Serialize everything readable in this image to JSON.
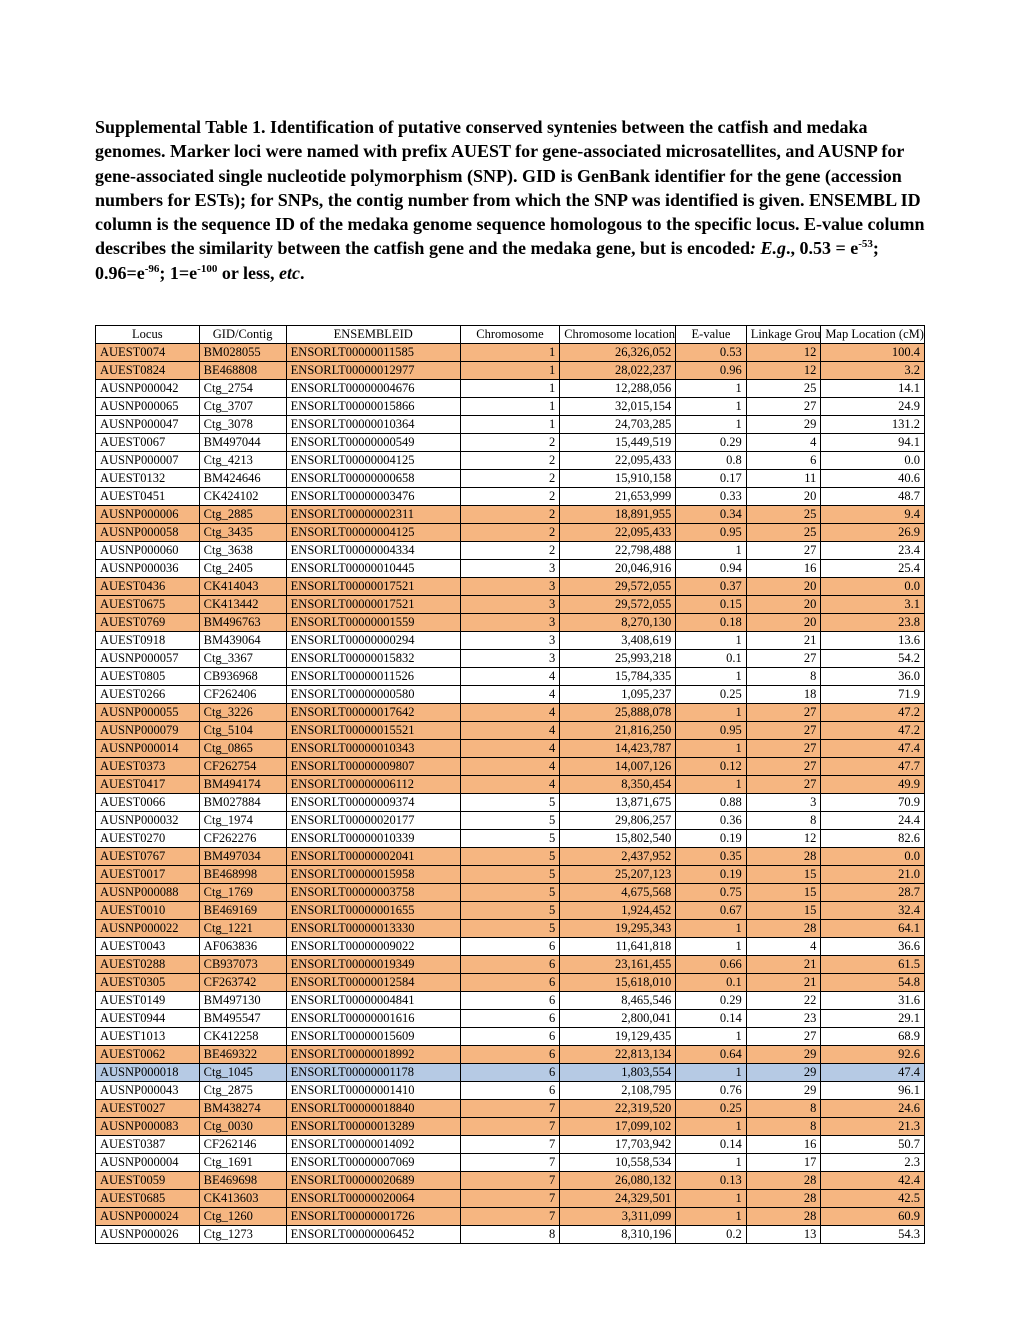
{
  "title_parts": {
    "p1": "Supplemental Table 1. Identification of putative conserved syntenies between the catfish and medaka genomes.  Marker loci were named with prefix AUEST for gene-associated microsatellites, and AUSNP for gene-associated single nucleotide polymorphism (SNP). GID is GenBank identifier for the gene (accession numbers for ESTs); for SNPs, the contig number from which the SNP was identified is given.  ENSEMBL ID column is the sequence ID of the medaka genome sequence homologous to the specific locus.  E-value column describes the similarity between the catfish gene and the medaka gene, but is encoded",
    "p2": ": E.g",
    "p3": "., 0.53 = e",
    "p4": "-53",
    "p5": "; 0.96=e",
    "p6": "-96",
    "p7": "; 1=e",
    "p8": "-100",
    "p9": " or less, ",
    "p10": "etc",
    "p11": "."
  },
  "colors": {
    "orange": "#f6b681",
    "blue": "#b6cae4",
    "white": "#ffffff"
  },
  "columns": [
    "Locus",
    "GID/Contig",
    "ENSEMBLEID",
    "Chromosome",
    "Chromosome location (bp)",
    "E-value",
    "Linkage Group",
    "Map Location (cM)"
  ],
  "rows": [
    {
      "hl": "orange",
      "c": [
        "AUEST0074",
        "BM028055",
        "ENSORLT00000011585",
        "1",
        "26,326,052",
        "0.53",
        "12",
        "100.4"
      ]
    },
    {
      "hl": "orange",
      "c": [
        "AUEST0824",
        "BE468808",
        "ENSORLT00000012977",
        "1",
        "28,022,237",
        "0.96",
        "12",
        "3.2"
      ]
    },
    {
      "hl": "white",
      "c": [
        "AUSNP000042",
        "Ctg_2754",
        "ENSORLT00000004676",
        "1",
        "12,288,056",
        "1",
        "25",
        "14.1"
      ]
    },
    {
      "hl": "white",
      "c": [
        "AUSNP000065",
        "Ctg_3707",
        "ENSORLT00000015866",
        "1",
        "32,015,154",
        "1",
        "27",
        "24.9"
      ]
    },
    {
      "hl": "white",
      "c": [
        "AUSNP000047",
        "Ctg_3078",
        "ENSORLT00000010364",
        "1",
        "24,703,285",
        "1",
        "29",
        "131.2"
      ]
    },
    {
      "hl": "white",
      "c": [
        "AUEST0067",
        "BM497044",
        "ENSORLT00000000549",
        "2",
        "15,449,519",
        "0.29",
        "4",
        "94.1"
      ]
    },
    {
      "hl": "white",
      "c": [
        "AUSNP000007",
        "Ctg_4213",
        "ENSORLT00000004125",
        "2",
        "22,095,433",
        "0.8",
        "6",
        "0.0"
      ]
    },
    {
      "hl": "white",
      "c": [
        "AUEST0132",
        "BM424646",
        "ENSORLT00000000658",
        "2",
        "15,910,158",
        "0.17",
        "11",
        "40.6"
      ]
    },
    {
      "hl": "white",
      "c": [
        "AUEST0451",
        "CK424102",
        "ENSORLT00000003476",
        "2",
        "21,653,999",
        "0.33",
        "20",
        "48.7"
      ]
    },
    {
      "hl": "orange",
      "c": [
        "AUSNP000006",
        "Ctg_2885",
        "ENSORLT00000002311",
        "2",
        "18,891,955",
        "0.34",
        "25",
        "9.4"
      ]
    },
    {
      "hl": "orange",
      "c": [
        "AUSNP000058",
        "Ctg_3435",
        "ENSORLT00000004125",
        "2",
        "22,095,433",
        "0.95",
        "25",
        "26.9"
      ]
    },
    {
      "hl": "white",
      "c": [
        "AUSNP000060",
        "Ctg_3638",
        "ENSORLT00000004334",
        "2",
        "22,798,488",
        "1",
        "27",
        "23.4"
      ]
    },
    {
      "hl": "white",
      "c": [
        "AUSNP000036",
        "Ctg_2405",
        "ENSORLT00000010445",
        "3",
        "20,046,916",
        "0.94",
        "16",
        "25.4"
      ]
    },
    {
      "hl": "orange",
      "c": [
        "AUEST0436",
        "CK414043",
        "ENSORLT00000017521",
        "3",
        "29,572,055",
        "0.37",
        "20",
        "0.0"
      ]
    },
    {
      "hl": "orange",
      "c": [
        "AUEST0675",
        "CK413442",
        "ENSORLT00000017521",
        "3",
        "29,572,055",
        "0.15",
        "20",
        "3.1"
      ]
    },
    {
      "hl": "orange",
      "c": [
        "AUEST0769",
        "BM496763",
        "ENSORLT00000001559",
        "3",
        "8,270,130",
        "0.18",
        "20",
        "23.8"
      ]
    },
    {
      "hl": "white",
      "c": [
        "AUEST0918",
        "BM439064",
        "ENSORLT00000000294",
        "3",
        "3,408,619",
        "1",
        "21",
        "13.6"
      ]
    },
    {
      "hl": "white",
      "c": [
        "AUSNP000057",
        "Ctg_3367",
        "ENSORLT00000015832",
        "3",
        "25,993,218",
        "0.1",
        "27",
        "54.2"
      ]
    },
    {
      "hl": "white",
      "c": [
        "AUEST0805",
        "CB936968",
        "ENSORLT00000011526",
        "4",
        "15,784,335",
        "1",
        "8",
        "36.0"
      ]
    },
    {
      "hl": "white",
      "c": [
        "AUEST0266",
        "CF262406",
        "ENSORLT00000000580",
        "4",
        "1,095,237",
        "0.25",
        "18",
        "71.9"
      ]
    },
    {
      "hl": "orange",
      "c": [
        "AUSNP000055",
        "Ctg_3226",
        "ENSORLT00000017642",
        "4",
        "25,888,078",
        "1",
        "27",
        "47.2"
      ]
    },
    {
      "hl": "orange",
      "c": [
        "AUSNP000079",
        "Ctg_5104",
        "ENSORLT00000015521",
        "4",
        "21,816,250",
        "0.95",
        "27",
        "47.2"
      ]
    },
    {
      "hl": "orange",
      "c": [
        "AUSNP000014",
        "Ctg_0865",
        "ENSORLT00000010343",
        "4",
        "14,423,787",
        "1",
        "27",
        "47.4"
      ]
    },
    {
      "hl": "orange",
      "c": [
        "AUEST0373",
        "CF262754",
        "ENSORLT00000009807",
        "4",
        "14,007,126",
        "0.12",
        "27",
        "47.7"
      ]
    },
    {
      "hl": "orange",
      "c": [
        "AUEST0417",
        "BM494174",
        "ENSORLT00000006112",
        "4",
        "8,350,454",
        "1",
        "27",
        "49.9"
      ]
    },
    {
      "hl": "white",
      "c": [
        "AUEST0066",
        "BM027884",
        "ENSORLT00000009374",
        "5",
        "13,871,675",
        "0.88",
        "3",
        "70.9"
      ]
    },
    {
      "hl": "white",
      "c": [
        "AUSNP000032",
        "Ctg_1974",
        "ENSORLT00000020177",
        "5",
        "29,806,257",
        "0.36",
        "8",
        "24.4"
      ]
    },
    {
      "hl": "white",
      "c": [
        "AUEST0270",
        "CF262276",
        "ENSORLT00000010339",
        "5",
        "15,802,540",
        "0.19",
        "12",
        "82.6"
      ]
    },
    {
      "hl": "orange",
      "c": [
        "AUEST0767",
        "BM497034",
        "ENSORLT00000002041",
        "5",
        "2,437,952",
        "0.35",
        "28",
        "0.0"
      ]
    },
    {
      "hl": "orange",
      "c": [
        "AUEST0017",
        "BE468998",
        "ENSORLT00000015958",
        "5",
        "25,207,123",
        "0.19",
        "15",
        "21.0"
      ]
    },
    {
      "hl": "orange",
      "c": [
        "AUSNP000088",
        "Ctg_1769",
        "ENSORLT00000003758",
        "5",
        "4,675,568",
        "0.75",
        "15",
        "28.7"
      ]
    },
    {
      "hl": "orange",
      "c": [
        "AUEST0010",
        "BE469169",
        "ENSORLT00000001655",
        "5",
        "1,924,452",
        "0.67",
        "15",
        "32.4"
      ]
    },
    {
      "hl": "orange",
      "c": [
        "AUSNP000022",
        "Ctg_1221",
        "ENSORLT00000013330",
        "5",
        "19,295,343",
        "1",
        "28",
        "64.1"
      ]
    },
    {
      "hl": "white",
      "c": [
        "AUEST0043",
        "AF063836",
        "ENSORLT00000009022",
        "6",
        "11,641,818",
        "1",
        "4",
        "36.6"
      ]
    },
    {
      "hl": "orange",
      "c": [
        "AUEST0288",
        "CB937073",
        "ENSORLT00000019349",
        "6",
        "23,161,455",
        "0.66",
        "21",
        "61.5"
      ]
    },
    {
      "hl": "orange",
      "c": [
        "AUEST0305",
        "CF263742",
        "ENSORLT00000012584",
        "6",
        "15,618,010",
        "0.1",
        "21",
        "54.8"
      ]
    },
    {
      "hl": "white",
      "c": [
        "AUEST0149",
        "BM497130",
        "ENSORLT00000004841",
        "6",
        "8,465,546",
        "0.29",
        "22",
        "31.6"
      ]
    },
    {
      "hl": "white",
      "c": [
        "AUEST0944",
        "BM495547",
        "ENSORLT00000001616",
        "6",
        "2,800,041",
        "0.14",
        "23",
        "29.1"
      ]
    },
    {
      "hl": "white",
      "c": [
        "AUEST1013",
        "CK412258",
        "ENSORLT00000015609",
        "6",
        "19,129,435",
        "1",
        "27",
        "68.9"
      ]
    },
    {
      "hl": "orange",
      "c": [
        "AUEST0062",
        "BE469322",
        "ENSORLT00000018992",
        "6",
        "22,813,134",
        "0.64",
        "29",
        "92.6"
      ]
    },
    {
      "hl": "blue",
      "c": [
        "AUSNP000018",
        "Ctg_1045",
        "ENSORLT00000001178",
        "6",
        "1,803,554",
        "1",
        "29",
        "47.4"
      ]
    },
    {
      "hl": "white",
      "c": [
        "AUSNP000043",
        "Ctg_2875",
        "ENSORLT00000001410",
        "6",
        "2,108,795",
        "0.76",
        "29",
        "96.1"
      ]
    },
    {
      "hl": "orange",
      "c": [
        "AUEST0027",
        "BM438274",
        "ENSORLT00000018840",
        "7",
        "22,319,520",
        "0.25",
        "8",
        "24.6"
      ]
    },
    {
      "hl": "orange",
      "c": [
        "AUSNP000083",
        "Ctg_0030",
        "ENSORLT00000013289",
        "7",
        "17,099,102",
        "1",
        "8",
        "21.3"
      ]
    },
    {
      "hl": "white",
      "c": [
        "AUEST0387",
        "CF262146",
        "ENSORLT00000014092",
        "7",
        "17,703,942",
        "0.14",
        "16",
        "50.7"
      ]
    },
    {
      "hl": "white",
      "c": [
        "AUSNP000004",
        "Ctg_1691",
        "ENSORLT00000007069",
        "7",
        "10,558,534",
        "1",
        "17",
        "2.3"
      ]
    },
    {
      "hl": "orange",
      "c": [
        "AUEST0059",
        "BE469698",
        "ENSORLT00000020689",
        "7",
        "26,080,132",
        "0.13",
        "28",
        "42.4"
      ]
    },
    {
      "hl": "orange",
      "c": [
        "AUEST0685",
        "CK413603",
        "ENSORLT00000020064",
        "7",
        "24,329,501",
        "1",
        "28",
        "42.5"
      ]
    },
    {
      "hl": "orange",
      "c": [
        "AUSNP000024",
        "Ctg_1260",
        "ENSORLT00000001726",
        "7",
        "3,311,099",
        "1",
        "28",
        "60.9"
      ]
    },
    {
      "hl": "white",
      "c": [
        "AUSNP000026",
        "Ctg_1273",
        "ENSORLT00000006452",
        "8",
        "8,310,196",
        "0.2",
        "13",
        "54.3"
      ]
    }
  ]
}
